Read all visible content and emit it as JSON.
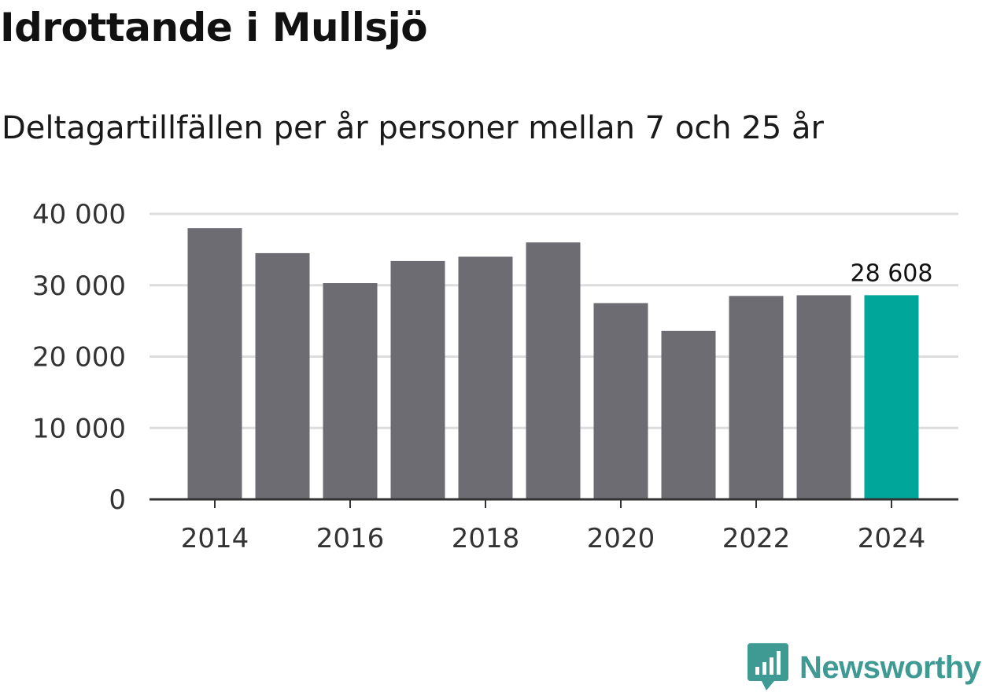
{
  "header": {
    "title": "Idrottande i Mullsjö",
    "subtitle": "Deltagartillfällen per år personer mellan 7 och 25 år"
  },
  "chart_data": {
    "type": "bar",
    "title": "Idrottande i Mullsjö",
    "subtitle": "Deltagartillfällen per år personer mellan 7 och 25 år",
    "categories": [
      "2014",
      "2015",
      "2016",
      "2017",
      "2018",
      "2019",
      "2020",
      "2021",
      "2022",
      "2023",
      "2024"
    ],
    "values": [
      38000,
      34500,
      30300,
      33400,
      34000,
      36000,
      27500,
      23600,
      28500,
      28600,
      28608
    ],
    "x_tick_labels": [
      "2014",
      "2016",
      "2018",
      "2020",
      "2022",
      "2024"
    ],
    "y_tick_labels": [
      "0",
      "10 000",
      "20 000",
      "30 000",
      "40 000"
    ],
    "y_ticks": [
      0,
      10000,
      20000,
      30000,
      40000
    ],
    "ylim": [
      0,
      40000
    ],
    "xlabel": "",
    "ylabel": "",
    "grid": true,
    "highlight_index": 10,
    "data_labels": [
      {
        "index": 10,
        "text": "28 608"
      }
    ],
    "colors": {
      "bar": "#6d6c72",
      "highlight": "#00a69a",
      "grid": "#dddddd",
      "axis": "#333333"
    }
  },
  "brand": {
    "name": "Newsworthy",
    "color": "#3e9a93",
    "icon": "newsworthy-logo-icon"
  }
}
